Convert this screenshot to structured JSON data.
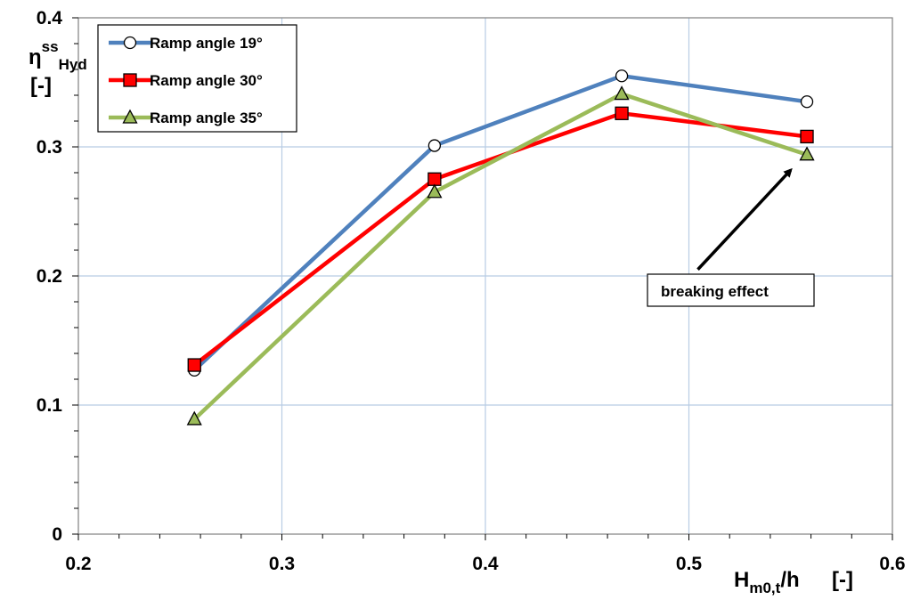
{
  "chart_data": {
    "type": "line",
    "title": "",
    "xlim": [
      0.2,
      0.6
    ],
    "ylim": [
      0,
      0.4
    ],
    "x_ticks": [
      "0.2",
      "0.3",
      "0.4",
      "0.5",
      "0.6"
    ],
    "y_ticks": [
      "0",
      "0.1",
      "0.2",
      "0.3",
      "0.4"
    ],
    "x_major_values": [
      0.2,
      0.3,
      0.4,
      0.5,
      0.6
    ],
    "y_major_values": [
      0,
      0.1,
      0.2,
      0.3,
      0.4
    ],
    "grid": true,
    "xlabel": {
      "main": "H",
      "sub": "m0,t",
      "rest": "/h",
      "unit": "[-]"
    },
    "ylabel": {
      "main": "η",
      "sup": "ss",
      "sub": "Hyd",
      "unit": "[-]"
    },
    "legend_position": "top-left",
    "series": [
      {
        "name": "Ramp angle 19°",
        "color": "#4f81bd",
        "marker": "circle",
        "marker_fill": "#ffffff",
        "x": [
          0.257,
          0.375,
          0.467,
          0.558
        ],
        "y": [
          0.127,
          0.301,
          0.355,
          0.335
        ]
      },
      {
        "name": "Ramp angle 30°",
        "color": "#ff0000",
        "marker": "square",
        "marker_fill": "#ff0000",
        "x": [
          0.257,
          0.375,
          0.467,
          0.558
        ],
        "y": [
          0.131,
          0.275,
          0.326,
          0.308
        ]
      },
      {
        "name": "Ramp angle 35°",
        "color": "#9bbb59",
        "marker": "triangle",
        "marker_fill": "#9bbb59",
        "x": [
          0.257,
          0.375,
          0.467,
          0.558
        ],
        "y": [
          0.089,
          0.265,
          0.341,
          0.294
        ]
      }
    ],
    "annotations": [
      {
        "text": "breaking effect",
        "arrow_from": [
          0.5,
          0.205
        ],
        "arrow_to": [
          0.55,
          0.282
        ]
      }
    ]
  }
}
